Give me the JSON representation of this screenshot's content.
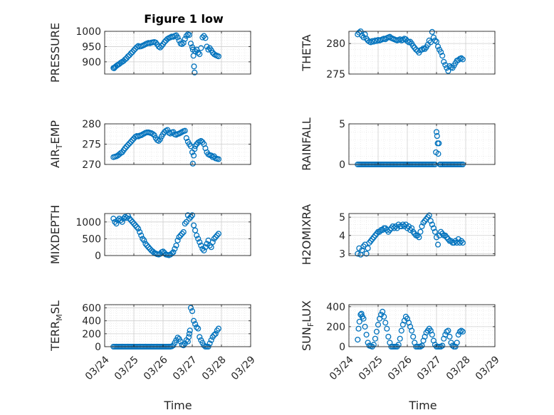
{
  "figure_title": "Figure 1 low",
  "colors": {
    "marker": "#0072BD",
    "axis": "#262626",
    "grid": "#cfcfcf",
    "background": "#ffffff"
  },
  "x_tick_labels": [
    "03/24",
    "03/25",
    "03/26",
    "03/27",
    "03/28",
    "03/29"
  ],
  "x_axis_label": "Time",
  "chart_data": [
    {
      "type": "scatter",
      "id": "pressure",
      "ylabel_main": "PRESSURE",
      "ylabel_sub": "",
      "ylabel_rest": "",
      "xlim": [
        0,
        5
      ],
      "ylim": [
        860,
        1000
      ],
      "yticks": [
        900,
        950,
        1000
      ],
      "grid": true,
      "minor_grid": true,
      "x": [
        0.3,
        0.32,
        0.35,
        0.38,
        0.42,
        0.45,
        0.5,
        0.55,
        0.6,
        0.65,
        0.7,
        0.75,
        0.8,
        0.85,
        0.9,
        0.95,
        1.0,
        1.05,
        1.1,
        1.15,
        1.2,
        1.25,
        1.3,
        1.35,
        1.4,
        1.45,
        1.5,
        1.55,
        1.6,
        1.65,
        1.7,
        1.75,
        1.8,
        1.85,
        1.9,
        1.95,
        2.0,
        2.05,
        2.1,
        2.15,
        2.2,
        2.25,
        2.3,
        2.35,
        2.4,
        2.45,
        2.5,
        2.55,
        2.6,
        2.65,
        2.7,
        2.75,
        2.8,
        2.85,
        2.9,
        2.95,
        3.0,
        3.02,
        3.04,
        3.06,
        3.08,
        3.1,
        3.15,
        3.2,
        3.25,
        3.3,
        3.35,
        3.4,
        3.45,
        3.5,
        3.55,
        3.6,
        3.65,
        3.7,
        3.75,
        3.8,
        3.85,
        3.9
      ],
      "y": [
        880,
        879,
        882,
        885,
        888,
        890,
        893,
        897,
        900,
        903,
        908,
        912,
        918,
        922,
        928,
        932,
        938,
        943,
        948,
        952,
        950,
        951,
        953,
        955,
        958,
        960,
        962,
        961,
        963,
        964,
        965,
        963,
        957,
        950,
        947,
        952,
        958,
        965,
        970,
        975,
        978,
        980,
        983,
        982,
        985,
        987,
        980,
        970,
        960,
        958,
        962,
        975,
        985,
        990,
        988,
        960,
        948,
        940,
        920,
        885,
        865,
        935,
        940,
        930,
        925,
        945,
        980,
        985,
        978,
        950,
        940,
        945,
        938,
        930,
        925,
        922,
        920,
        918
      ]
    },
    {
      "type": "scatter",
      "id": "theta",
      "ylabel_main": "THETA",
      "ylabel_sub": "",
      "ylabel_rest": "",
      "xlim": [
        0,
        5
      ],
      "ylim": [
        275,
        282
      ],
      "yticks": [
        275,
        280
      ],
      "grid": true,
      "minor_grid": true,
      "x": [
        0.3,
        0.35,
        0.4,
        0.45,
        0.5,
        0.55,
        0.6,
        0.65,
        0.7,
        0.75,
        0.8,
        0.85,
        0.9,
        0.95,
        1.0,
        1.05,
        1.1,
        1.15,
        1.2,
        1.25,
        1.3,
        1.35,
        1.4,
        1.45,
        1.5,
        1.55,
        1.6,
        1.65,
        1.7,
        1.75,
        1.8,
        1.85,
        1.9,
        1.95,
        2.0,
        2.05,
        2.1,
        2.15,
        2.2,
        2.25,
        2.3,
        2.35,
        2.4,
        2.45,
        2.5,
        2.55,
        2.6,
        2.65,
        2.7,
        2.75,
        2.8,
        2.85,
        2.9,
        2.95,
        3.0,
        3.05,
        3.1,
        3.15,
        3.2,
        3.25,
        3.3,
        3.35,
        3.4,
        3.45,
        3.5,
        3.55,
        3.6,
        3.65,
        3.7,
        3.75,
        3.8,
        3.85,
        3.9
      ],
      "y": [
        281.5,
        281.8,
        282.0,
        281.3,
        281.0,
        281.5,
        280.8,
        280.5,
        280.3,
        280.2,
        280.4,
        280.3,
        280.5,
        280.4,
        280.6,
        280.5,
        280.6,
        280.7,
        280.8,
        280.7,
        280.9,
        281.0,
        281.1,
        280.9,
        280.8,
        280.7,
        280.6,
        280.5,
        280.6,
        280.7,
        280.5,
        280.6,
        280.8,
        280.7,
        280.4,
        280.2,
        280.3,
        280.0,
        279.6,
        279.3,
        279.0,
        278.8,
        278.5,
        278.9,
        279.0,
        279.2,
        279.1,
        279.4,
        279.8,
        280.5,
        280.2,
        281.9,
        281.0,
        280.5,
        280.3,
        279.5,
        279.0,
        278.6,
        278.0,
        277.0,
        276.5,
        276.0,
        275.5,
        276.3,
        276.1,
        276.0,
        276.4,
        276.8,
        277.2,
        277.3,
        277.5,
        277.6,
        277.4
      ]
    },
    {
      "type": "scatter",
      "id": "air_temp",
      "ylabel_main": "AIR",
      "ylabel_sub": "T",
      "ylabel_rest": "EMP",
      "xlim": [
        0,
        5
      ],
      "ylim": [
        270,
        280
      ],
      "yticks": [
        270,
        275,
        280
      ],
      "grid": true,
      "minor_grid": true,
      "x": [
        0.3,
        0.35,
        0.4,
        0.45,
        0.5,
        0.55,
        0.6,
        0.65,
        0.7,
        0.75,
        0.8,
        0.85,
        0.9,
        0.95,
        1.0,
        1.05,
        1.1,
        1.15,
        1.2,
        1.25,
        1.3,
        1.35,
        1.4,
        1.45,
        1.5,
        1.55,
        1.6,
        1.65,
        1.7,
        1.75,
        1.8,
        1.85,
        1.9,
        1.95,
        2.0,
        2.05,
        2.1,
        2.15,
        2.2,
        2.25,
        2.3,
        2.35,
        2.4,
        2.45,
        2.5,
        2.55,
        2.6,
        2.65,
        2.7,
        2.75,
        2.8,
        2.85,
        2.9,
        2.95,
        3.0,
        3.02,
        3.05,
        3.08,
        3.1,
        3.15,
        3.2,
        3.25,
        3.3,
        3.35,
        3.4,
        3.45,
        3.5,
        3.55,
        3.6,
        3.65,
        3.7,
        3.75,
        3.8,
        3.85,
        3.9
      ],
      "y": [
        271.8,
        271.9,
        272.0,
        272.2,
        272.5,
        272.8,
        273.0,
        273.5,
        274.0,
        274.4,
        274.8,
        275.2,
        275.6,
        276.0,
        276.4,
        276.8,
        277.0,
        276.9,
        277.1,
        277.2,
        277.4,
        277.6,
        277.8,
        277.9,
        277.9,
        277.8,
        277.7,
        277.5,
        277.2,
        276.5,
        276.0,
        275.8,
        276.2,
        276.9,
        277.5,
        278.0,
        278.3,
        278.5,
        277.8,
        277.6,
        277.9,
        278.0,
        277.4,
        277.3,
        277.5,
        277.6,
        277.8,
        278.0,
        278.2,
        278.3,
        276.5,
        275.6,
        275.0,
        274.5,
        273.0,
        270.2,
        272.2,
        273.8,
        274.5,
        275.0,
        275.4,
        275.6,
        275.8,
        275.5,
        275.0,
        274.0,
        273.0,
        272.5,
        272.3,
        272.2,
        271.8,
        272.0,
        271.5,
        271.4,
        271.3
      ]
    },
    {
      "type": "scatter",
      "id": "rainfall",
      "ylabel_main": "RAINFALL",
      "ylabel_sub": "",
      "ylabel_rest": "",
      "xlim": [
        0,
        5
      ],
      "ylim": [
        0,
        5
      ],
      "yticks": [
        0,
        5
      ],
      "grid": true,
      "minor_grid": true,
      "x": [
        0.3,
        0.35,
        0.4,
        0.45,
        0.5,
        0.55,
        0.6,
        0.65,
        0.7,
        0.75,
        0.8,
        0.85,
        0.9,
        0.95,
        1.0,
        1.05,
        1.1,
        1.15,
        1.2,
        1.25,
        1.3,
        1.35,
        1.4,
        1.45,
        1.5,
        1.55,
        1.6,
        1.65,
        1.7,
        1.75,
        1.8,
        1.85,
        1.9,
        1.95,
        2.0,
        2.05,
        2.1,
        2.15,
        2.2,
        2.25,
        2.3,
        2.35,
        2.4,
        2.45,
        2.5,
        2.55,
        2.6,
        2.65,
        2.7,
        2.75,
        2.8,
        2.85,
        2.9,
        2.95,
        2.98,
        3.0,
        3.02,
        3.04,
        3.06,
        3.08,
        3.12,
        3.15,
        3.2,
        3.25,
        3.3,
        3.35,
        3.4,
        3.45,
        3.5,
        3.55,
        3.6,
        3.65,
        3.7,
        3.75,
        3.8,
        3.85,
        3.9
      ],
      "y": [
        0,
        0,
        0,
        0,
        0,
        0,
        0,
        0,
        0,
        0,
        0,
        0,
        0,
        0,
        0,
        0,
        0,
        0,
        0,
        0,
        0,
        0,
        0,
        0,
        0,
        0,
        0,
        0,
        0,
        0,
        0,
        0,
        0,
        0,
        0,
        0,
        0,
        0,
        0,
        0,
        0,
        0,
        0,
        0,
        0,
        0,
        0,
        0,
        0,
        0,
        0,
        0,
        0,
        0,
        1.5,
        4.0,
        3.5,
        2.6,
        1.3,
        2.6,
        0,
        0,
        0,
        0,
        0,
        0,
        0,
        0,
        0,
        0,
        0,
        0,
        0,
        0,
        0,
        0,
        0
      ]
    },
    {
      "type": "scatter",
      "id": "mixdepth",
      "ylabel_main": "MIXDEPTH",
      "ylabel_sub": "",
      "ylabel_rest": "",
      "xlim": [
        0,
        5
      ],
      "ylim": [
        0,
        1250
      ],
      "yticks": [
        0,
        500,
        1000
      ],
      "grid": true,
      "minor_grid": true,
      "x": [
        0.3,
        0.35,
        0.4,
        0.45,
        0.5,
        0.55,
        0.6,
        0.65,
        0.7,
        0.75,
        0.8,
        0.85,
        0.9,
        0.95,
        1.0,
        1.05,
        1.1,
        1.15,
        1.2,
        1.25,
        1.3,
        1.35,
        1.4,
        1.45,
        1.5,
        1.55,
        1.6,
        1.65,
        1.7,
        1.75,
        1.8,
        1.85,
        1.9,
        1.95,
        2.0,
        2.05,
        2.1,
        2.15,
        2.2,
        2.25,
        2.3,
        2.35,
        2.4,
        2.45,
        2.5,
        2.55,
        2.6,
        2.65,
        2.7,
        2.75,
        2.8,
        2.85,
        2.9,
        2.95,
        3.0,
        3.05,
        3.1,
        3.15,
        3.2,
        3.25,
        3.3,
        3.35,
        3.4,
        3.45,
        3.5,
        3.55,
        3.6,
        3.65,
        3.7,
        3.75,
        3.8,
        3.85,
        3.9
      ],
      "y": [
        1100,
        1000,
        950,
        1050,
        1100,
        1050,
        1000,
        1100,
        1150,
        1120,
        1180,
        1100,
        1050,
        1000,
        950,
        900,
        850,
        800,
        700,
        600,
        500,
        450,
        350,
        300,
        250,
        200,
        150,
        120,
        80,
        60,
        40,
        30,
        50,
        100,
        120,
        80,
        30,
        20,
        10,
        30,
        60,
        100,
        200,
        300,
        450,
        550,
        600,
        650,
        700,
        950,
        1000,
        1200,
        1100,
        1150,
        1200,
        900,
        750,
        600,
        500,
        400,
        300,
        200,
        150,
        250,
        350,
        450,
        300,
        250,
        400,
        500,
        550,
        600,
        650
      ]
    },
    {
      "type": "scatter",
      "id": "h2omixra",
      "ylabel_main": "H2OMIXRA",
      "ylabel_sub": "",
      "ylabel_rest": "",
      "xlim": [
        0,
        5
      ],
      "ylim": [
        2.9,
        5.2
      ],
      "yticks": [
        3,
        4,
        5
      ],
      "grid": true,
      "minor_grid": true,
      "x": [
        0.3,
        0.35,
        0.4,
        0.45,
        0.5,
        0.55,
        0.6,
        0.65,
        0.7,
        0.75,
        0.8,
        0.85,
        0.9,
        0.95,
        1.0,
        1.05,
        1.1,
        1.15,
        1.2,
        1.25,
        1.3,
        1.35,
        1.4,
        1.45,
        1.5,
        1.55,
        1.6,
        1.65,
        1.7,
        1.75,
        1.8,
        1.85,
        1.9,
        1.95,
        2.0,
        2.05,
        2.1,
        2.15,
        2.2,
        2.25,
        2.3,
        2.35,
        2.4,
        2.45,
        2.5,
        2.55,
        2.6,
        2.65,
        2.7,
        2.75,
        2.8,
        2.85,
        2.9,
        2.95,
        3.0,
        3.05,
        3.1,
        3.15,
        3.2,
        3.25,
        3.3,
        3.35,
        3.4,
        3.45,
        3.5,
        3.55,
        3.6,
        3.65,
        3.7,
        3.75,
        3.8,
        3.85,
        3.9
      ],
      "y": [
        3.0,
        3.3,
        2.95,
        3.2,
        3.4,
        3.5,
        3.0,
        3.3,
        3.6,
        3.7,
        3.8,
        3.9,
        4.0,
        4.1,
        4.2,
        4.2,
        4.3,
        4.3,
        4.4,
        4.4,
        4.3,
        4.2,
        4.3,
        4.4,
        4.5,
        4.4,
        4.5,
        4.4,
        4.6,
        4.5,
        4.5,
        4.6,
        4.5,
        4.6,
        4.4,
        4.5,
        4.3,
        4.4,
        4.2,
        4.1,
        4.0,
        4.0,
        3.9,
        4.2,
        4.5,
        4.7,
        4.8,
        4.9,
        5.0,
        5.1,
        4.8,
        4.6,
        4.4,
        4.2,
        3.9,
        3.5,
        4.0,
        4.2,
        4.1,
        4.0,
        4.0,
        3.9,
        3.8,
        3.7,
        3.7,
        3.6,
        3.6,
        3.7,
        3.6,
        3.8,
        3.6,
        3.7,
        3.6
      ]
    },
    {
      "type": "scatter",
      "id": "terr_msl",
      "ylabel_main": "TERR",
      "ylabel_sub": "M",
      "ylabel_rest": "SL",
      "xlim": [
        0,
        5
      ],
      "ylim": [
        0,
        650
      ],
      "yticks": [
        0,
        200,
        400,
        600
      ],
      "grid": true,
      "minor_grid": true,
      "x": [
        0.3,
        0.35,
        0.4,
        0.45,
        0.5,
        0.55,
        0.6,
        0.65,
        0.7,
        0.75,
        0.8,
        0.85,
        0.9,
        0.95,
        1.0,
        1.05,
        1.1,
        1.15,
        1.2,
        1.25,
        1.3,
        1.35,
        1.4,
        1.45,
        1.5,
        1.55,
        1.6,
        1.65,
        1.7,
        1.75,
        1.8,
        1.85,
        1.9,
        1.95,
        2.0,
        2.05,
        2.1,
        2.15,
        2.2,
        2.25,
        2.3,
        2.35,
        2.4,
        2.45,
        2.5,
        2.55,
        2.6,
        2.65,
        2.7,
        2.75,
        2.8,
        2.85,
        2.88,
        2.9,
        2.92,
        2.95,
        3.0,
        3.05,
        3.1,
        3.15,
        3.2,
        3.25,
        3.3,
        3.35,
        3.4,
        3.45,
        3.5,
        3.55,
        3.6,
        3.65,
        3.7,
        3.75,
        3.8,
        3.85,
        3.9
      ],
      "y": [
        0,
        0,
        0,
        0,
        0,
        0,
        0,
        0,
        0,
        0,
        0,
        0,
        0,
        0,
        0,
        0,
        0,
        0,
        0,
        0,
        0,
        0,
        0,
        0,
        0,
        0,
        0,
        0,
        0,
        0,
        0,
        0,
        0,
        0,
        0,
        0,
        0,
        0,
        0,
        0,
        5,
        20,
        60,
        100,
        140,
        120,
        80,
        30,
        20,
        50,
        100,
        80,
        150,
        200,
        250,
        600,
        550,
        400,
        350,
        300,
        280,
        150,
        100,
        60,
        20,
        0,
        0,
        0,
        50,
        100,
        150,
        180,
        200,
        250,
        280
      ]
    },
    {
      "type": "scatter",
      "id": "sun_flux",
      "ylabel_main": "SUN",
      "ylabel_sub": "F",
      "ylabel_rest": "LUX",
      "xlim": [
        0,
        5
      ],
      "ylim": [
        0,
        420
      ],
      "yticks": [
        0,
        200,
        400
      ],
      "grid": true,
      "minor_grid": true,
      "x": [
        0.3,
        0.33,
        0.36,
        0.4,
        0.43,
        0.46,
        0.5,
        0.55,
        0.6,
        0.65,
        0.7,
        0.75,
        0.8,
        0.85,
        0.9,
        0.95,
        1.0,
        1.05,
        1.1,
        1.15,
        1.2,
        1.25,
        1.3,
        1.35,
        1.4,
        1.45,
        1.5,
        1.55,
        1.6,
        1.65,
        1.7,
        1.75,
        1.8,
        1.85,
        1.9,
        1.95,
        2.0,
        2.05,
        2.1,
        2.15,
        2.2,
        2.25,
        2.3,
        2.35,
        2.4,
        2.45,
        2.5,
        2.55,
        2.6,
        2.65,
        2.7,
        2.75,
        2.8,
        2.85,
        2.9,
        2.95,
        3.0,
        3.05,
        3.1,
        3.15,
        3.2,
        3.25,
        3.3,
        3.35,
        3.4,
        3.45,
        3.5,
        3.55,
        3.6,
        3.65,
        3.7,
        3.75,
        3.8,
        3.85,
        3.9
      ],
      "y": [
        70,
        180,
        250,
        320,
        330,
        300,
        280,
        200,
        120,
        40,
        10,
        5,
        0,
        20,
        80,
        150,
        220,
        280,
        320,
        350,
        300,
        240,
        180,
        100,
        40,
        0,
        0,
        0,
        0,
        0,
        20,
        80,
        160,
        220,
        260,
        300,
        280,
        240,
        200,
        160,
        100,
        40,
        0,
        0,
        0,
        0,
        10,
        60,
        100,
        140,
        160,
        180,
        160,
        120,
        60,
        20,
        0,
        0,
        0,
        0,
        10,
        80,
        120,
        150,
        160,
        100,
        40,
        10,
        0,
        0,
        40,
        120,
        150,
        160,
        150
      ]
    }
  ]
}
